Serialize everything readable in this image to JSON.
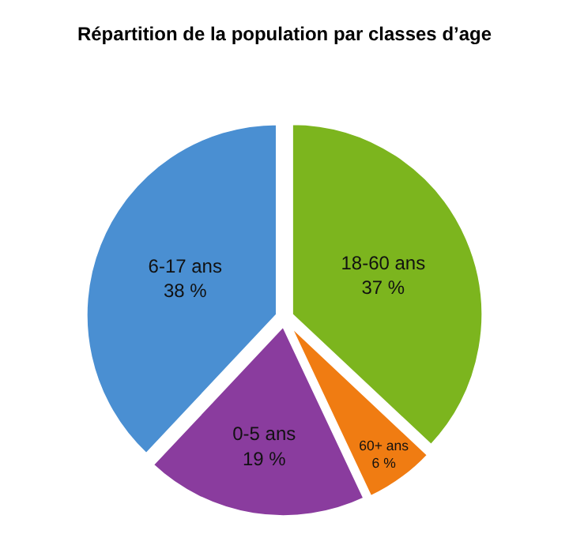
{
  "chart_data": {
    "type": "pie",
    "title": "Répartition de la population par classes d’age",
    "categories": [
      "18-60 ans",
      "60+ ans",
      "0-5 ans",
      "6-17 ans"
    ],
    "values": [
      37,
      6,
      19,
      38
    ],
    "value_labels": [
      "37 %",
      "6 %",
      "19 %",
      "38 %"
    ],
    "colors": [
      "#7cb51e",
      "#f07c12",
      "#8a3c9e",
      "#4a8fd2"
    ]
  }
}
